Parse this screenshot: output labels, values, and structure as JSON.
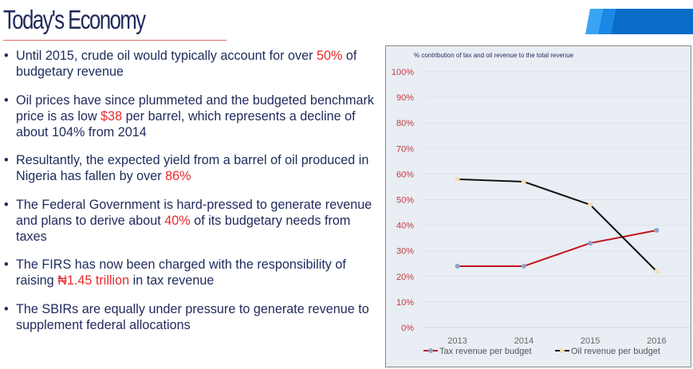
{
  "title": "Today's Economy",
  "bullets": [
    {
      "parts": [
        "Until 2015, crude oil would typically account for over ",
        "50%",
        " of budgetary revenue"
      ]
    },
    {
      "parts": [
        "Oil prices have since plummeted and the budgeted benchmark price is as low ",
        "$38",
        " per barrel, which represents a decline of about 104% from 2014"
      ]
    },
    {
      "parts": [
        "Resultantly, the expected yield from a barrel of oil produced in Nigeria has fallen by over ",
        "86%",
        ""
      ]
    },
    {
      "parts": [
        "The Federal Government is hard-pressed to generate revenue and plans to derive about ",
        "40%",
        " of its budgetary needs from taxes"
      ]
    },
    {
      "parts": [
        "The FIRS has now been charged with the responsibility of raising ",
        "₦1.45 trillion",
        " in tax revenue"
      ]
    },
    {
      "parts": [
        "The SBIRs are equally under pressure to generate revenue to supplement federal allocations",
        "",
        ""
      ]
    }
  ],
  "colors": {
    "text": "#1f2a5c",
    "highlight": "#e8282b",
    "tax": "#c0161c",
    "oil": "#111111"
  },
  "chart_data": {
    "type": "line",
    "title": "% contribution of tax and oil revenue to the total revenue",
    "categories": [
      "2013",
      "2014",
      "2015",
      "2016"
    ],
    "yticks": [
      "0%",
      "10%",
      "20%",
      "30%",
      "40%",
      "50%",
      "60%",
      "70%",
      "80%",
      "90%",
      "100%"
    ],
    "ylim": [
      0,
      100
    ],
    "series": [
      {
        "name": "Tax revenue per budget",
        "values": [
          24,
          24,
          33,
          38
        ]
      },
      {
        "name": "Oil revenue per budget",
        "values": [
          58,
          57,
          48,
          22
        ]
      }
    ],
    "legend": "bottom"
  }
}
